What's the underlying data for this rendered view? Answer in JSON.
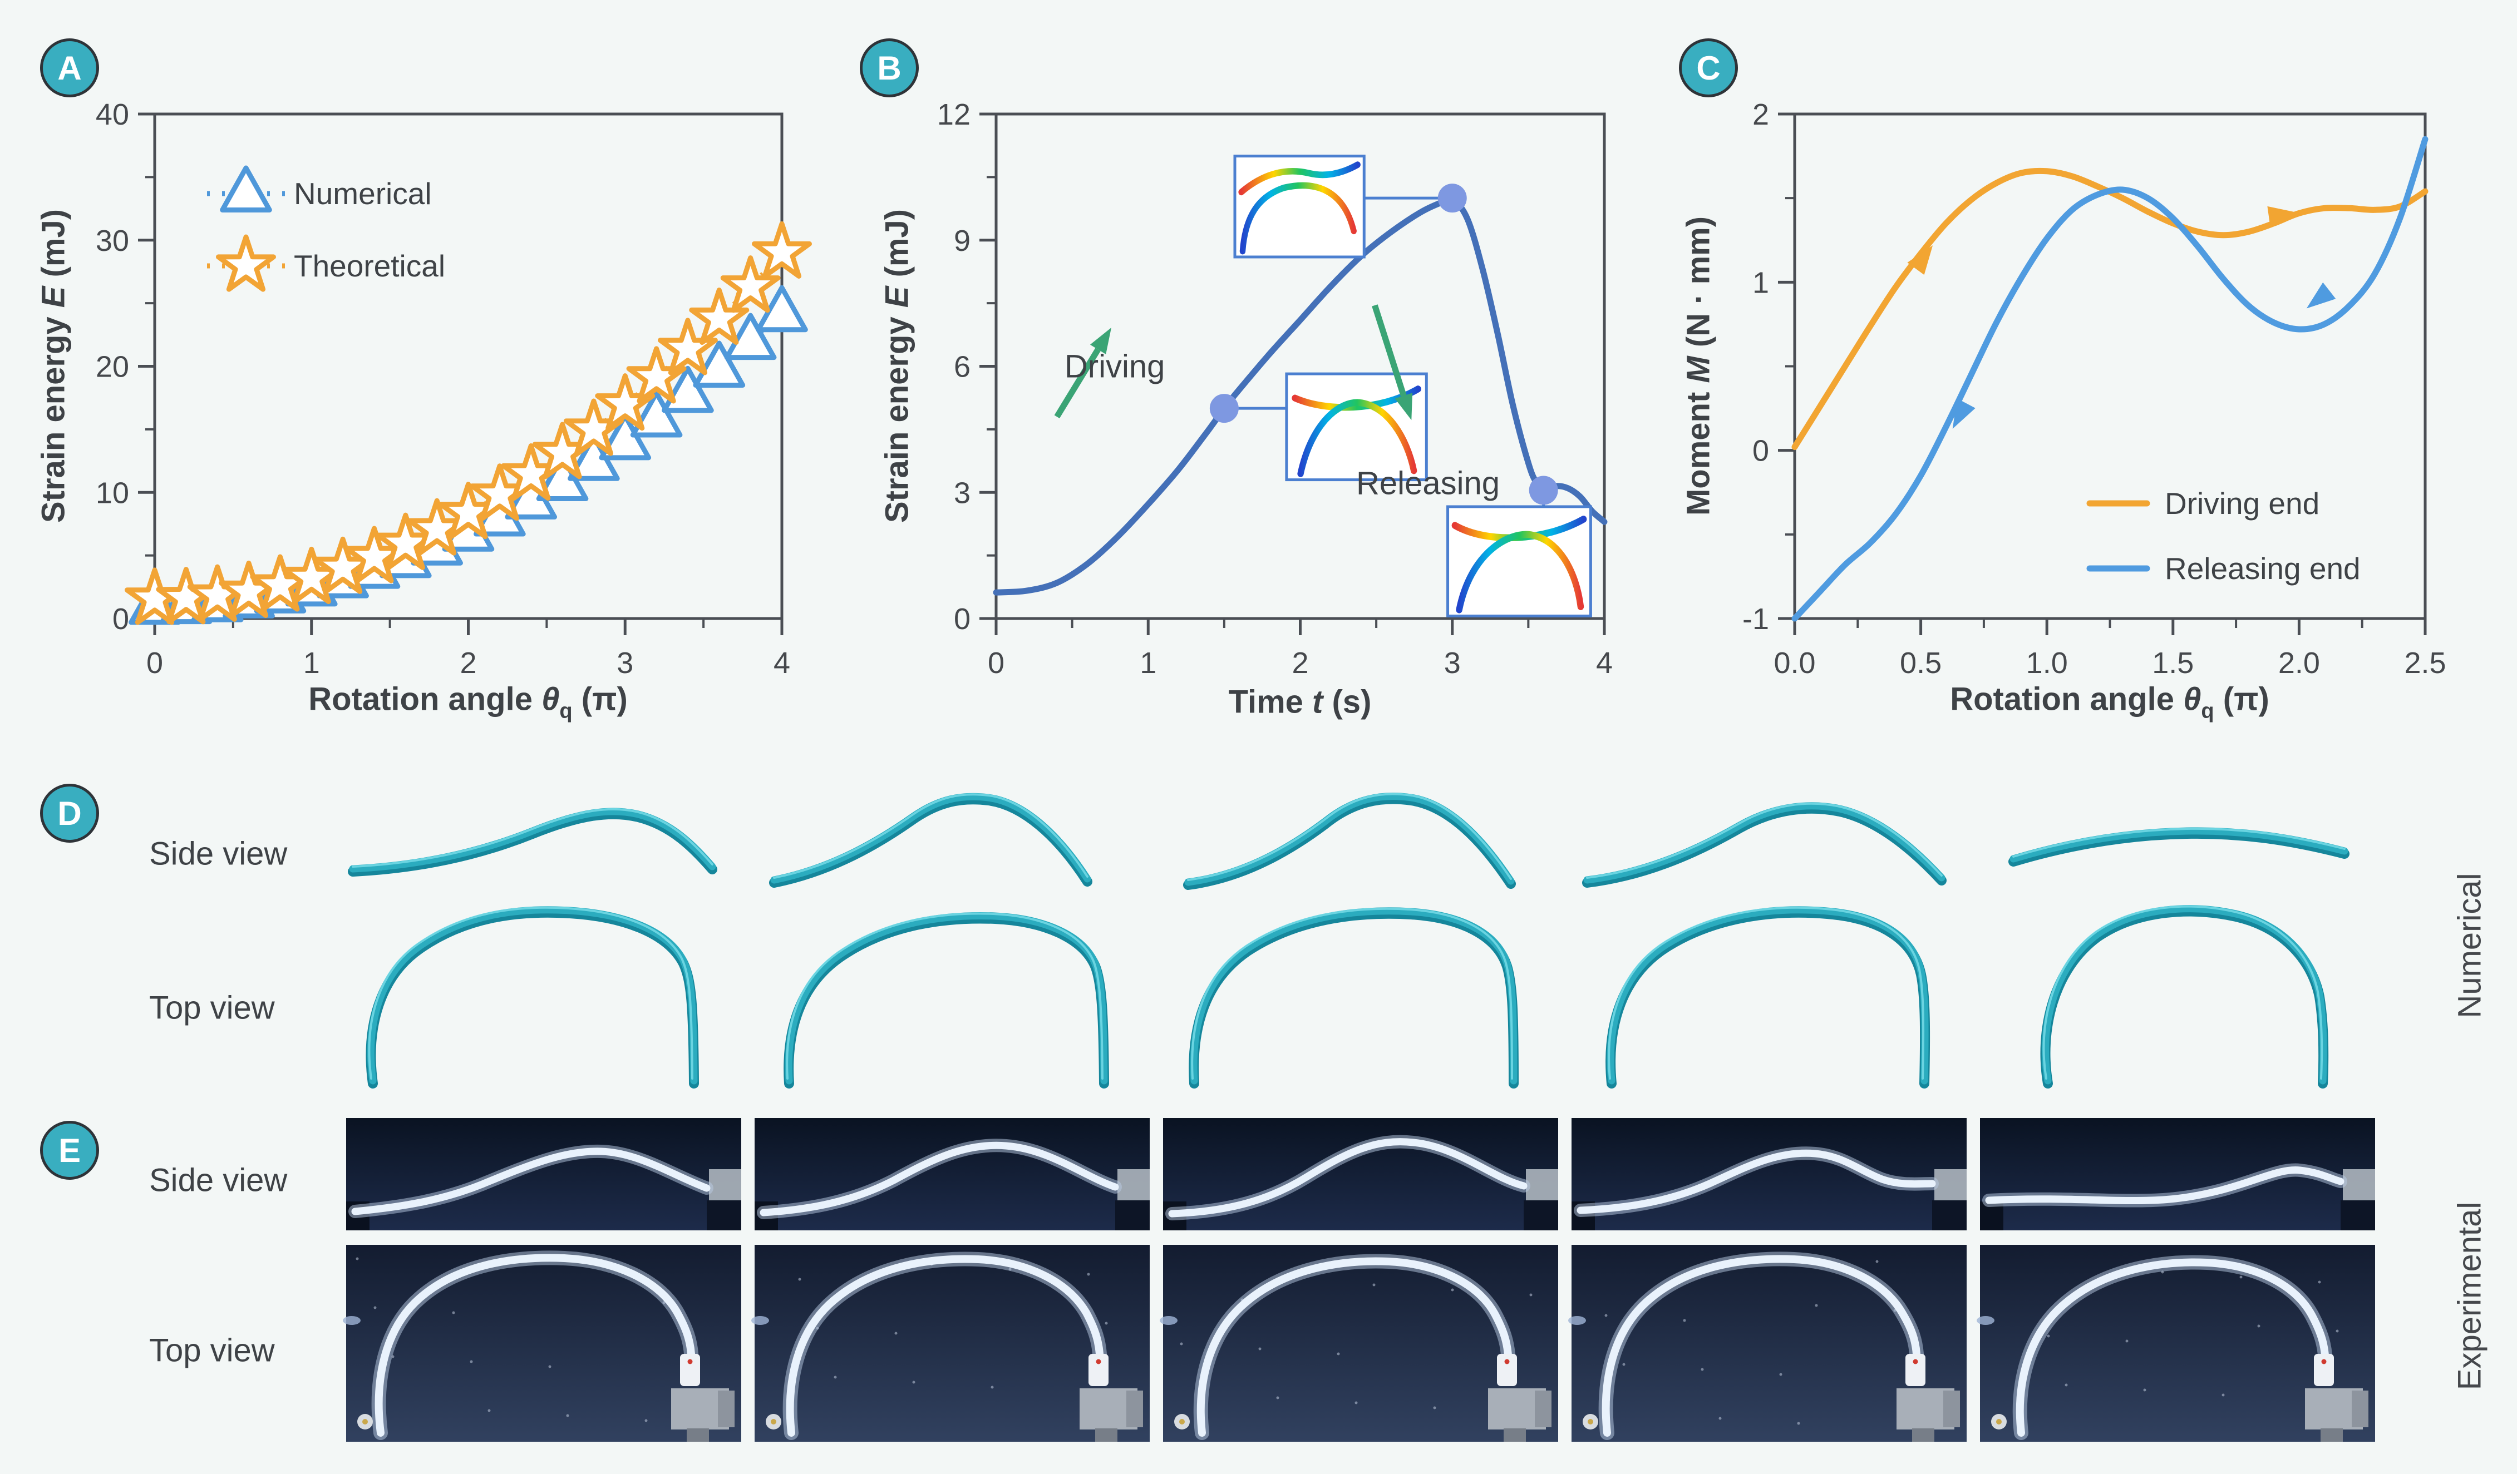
{
  "page": {
    "bg": "#f3f7f6",
    "footer_bg": "#ffffff"
  },
  "colors": {
    "axis": "#4a4e54",
    "text": "#3e4246",
    "tick_text": "#45484c",
    "badge_fill": "#39aec0",
    "badge_stroke": "#2e3338",
    "badge_letter": "#ffffff",
    "inset_border": "#4b7fd0",
    "green_arrow": "#3aa475",
    "rod_dark": "#15869b",
    "rod_main": "#2bacbf",
    "rod_light": "#7adeea",
    "photo_bg_top": "#0a1322",
    "photo_bg_bottom": "#1d2b4a",
    "photo_top_bg_top": "#131c30",
    "photo_top_bg_bottom": "#31415f",
    "photo_rod": "#e9f2fc",
    "photo_rod_glow": "#b9cbe4",
    "fixture_gray": "#b6bec6",
    "motor_gray": "#a8afb8",
    "coupler_white": "#eef1f5"
  },
  "panels": {
    "a": {
      "badge": "A"
    },
    "b": {
      "badge": "B"
    },
    "c": {
      "badge": "C"
    },
    "d": {
      "badge": "D",
      "row_labels": [
        "Side view",
        "Top view"
      ],
      "right_label": "Numerical"
    },
    "e": {
      "badge": "E",
      "row_labels": [
        "Side view",
        "Top view"
      ],
      "right_label": "Experimental"
    }
  },
  "chart_data": [
    {
      "type": "scatter",
      "xlabel_parts": {
        "pre": "Rotation angle ",
        "var": "θ",
        "sub": "q",
        "post": " (π)"
      },
      "ylabel_parts": {
        "pre": "Strain energy ",
        "var": "E",
        "post": " (mJ)"
      },
      "xlim": [
        0,
        4
      ],
      "ylim": [
        0,
        40
      ],
      "xticks": [
        0,
        1,
        2,
        3,
        4
      ],
      "xtick_labels": [
        "0",
        "1",
        "2",
        "3",
        "4"
      ],
      "yticks": [
        0,
        10,
        20,
        30,
        40
      ],
      "ytick_labels": [
        "0",
        "10",
        "20",
        "30",
        "40"
      ],
      "x_minor": 0.5,
      "y_minor": 5,
      "series": [
        {
          "name": "Numerical",
          "marker": "triangle",
          "color": "#4f98da",
          "x": [
            0,
            0.2,
            0.4,
            0.6,
            0.8,
            1.0,
            1.2,
            1.4,
            1.6,
            1.8,
            2.0,
            2.2,
            2.4,
            2.6,
            2.8,
            3.0,
            3.2,
            3.4,
            3.6,
            3.8,
            4.0
          ],
          "y": [
            1.0,
            1.05,
            1.2,
            1.5,
            1.9,
            2.45,
            3.1,
            3.85,
            4.7,
            5.7,
            6.8,
            8.0,
            9.35,
            10.8,
            12.4,
            14.05,
            15.85,
            17.8,
            19.8,
            22.0,
            24.2
          ]
        },
        {
          "name": "Theoretical",
          "marker": "star",
          "color": "#f2a435",
          "x": [
            0,
            0.2,
            0.4,
            0.6,
            0.8,
            1.0,
            1.2,
            1.4,
            1.6,
            1.8,
            2.0,
            2.2,
            2.4,
            2.6,
            2.8,
            3.0,
            3.2,
            3.4,
            3.6,
            3.8,
            4.0
          ],
          "y": [
            1.55,
            1.6,
            1.8,
            2.1,
            2.6,
            3.2,
            4.0,
            4.85,
            5.9,
            7.05,
            8.35,
            9.8,
            11.4,
            13.1,
            14.95,
            16.95,
            19.1,
            21.35,
            23.75,
            26.3,
            29.0
          ]
        }
      ]
    },
    {
      "type": "line",
      "xlabel_parts": {
        "pre": "Time ",
        "var": "t",
        "post": " (s)"
      },
      "ylabel_parts": {
        "pre": "Strain energy ",
        "var": "E",
        "post": " (mJ)"
      },
      "xlim": [
        0,
        4
      ],
      "ylim": [
        0,
        12
      ],
      "xticks": [
        0,
        1,
        2,
        3,
        4
      ],
      "xtick_labels": [
        "0",
        "1",
        "2",
        "3",
        "4"
      ],
      "yticks": [
        0,
        3,
        6,
        9,
        12
      ],
      "ytick_labels": [
        "0",
        "3",
        "6",
        "9",
        "12"
      ],
      "x_minor": 0.5,
      "y_minor": 1.5,
      "line_color": "#4470b8",
      "marker_color": "#7e98e1",
      "x": [
        0,
        0.2,
        0.4,
        0.6,
        0.8,
        1.0,
        1.2,
        1.4,
        1.5,
        1.6,
        1.8,
        2.0,
        2.2,
        2.4,
        2.6,
        2.8,
        2.95,
        3.0,
        3.1,
        3.2,
        3.3,
        3.4,
        3.5,
        3.55,
        3.6,
        3.68,
        3.76,
        3.84,
        3.92,
        4.0
      ],
      "y": [
        0.62,
        0.66,
        0.85,
        1.3,
        1.95,
        2.72,
        3.55,
        4.5,
        5.0,
        5.45,
        6.3,
        7.1,
        7.9,
        8.62,
        9.2,
        9.68,
        9.93,
        10.0,
        9.5,
        8.3,
        6.75,
        5.05,
        3.7,
        3.25,
        3.05,
        3.15,
        3.1,
        2.9,
        2.55,
        2.3
      ],
      "markers": [
        [
          1.5,
          5.0
        ],
        [
          3.0,
          10.0
        ],
        [
          3.6,
          3.05
        ]
      ],
      "annotations": [
        {
          "text": "Driving",
          "x": 0.78,
          "y": 6.0
        },
        {
          "text": "Releasing",
          "x": 2.84,
          "y": 3.22
        }
      ],
      "arrows": [
        [
          0.4,
          4.8,
          0.67,
          6.4
        ],
        [
          2.49,
          7.45,
          2.68,
          5.3
        ]
      ],
      "insets": [
        {
          "box": [
            1.57,
            8.6,
            2.42,
            11.0
          ],
          "leader": [
            [
              2.42,
              10.0
            ],
            [
              3.0,
              10.0
            ]
          ],
          "paths": [
            "M5,25 C22,12 40,8 58,12 C72,15 85,11 95,6",
            "M6,66 C8,42 18,28 38,22 C62,17 84,23 92,52"
          ]
        },
        {
          "box": [
            1.91,
            3.3,
            2.83,
            5.82
          ],
          "leader": [
            [
              1.5,
              5.0
            ],
            [
              1.91,
              5.0
            ]
          ],
          "paths": [
            "M6,16 C28,25 66,25 94,10",
            "M10,66 C18,32 38,18 52,19 C72,21 86,42 91,64"
          ]
        },
        {
          "box": [
            2.97,
            0.06,
            3.91,
            2.66
          ],
          "leader": [
            [
              3.6,
              3.05
            ],
            [
              3.6,
              2.66
            ]
          ],
          "paths": [
            "M5,12 C28,24 68,22 95,8",
            "M8,66 C16,30 42,16 58,18 C78,21 90,42 93,64"
          ]
        }
      ]
    },
    {
      "type": "multiline",
      "xlabel_parts": {
        "pre": "Rotation angle ",
        "var": "θ",
        "sub": "q",
        "post": " (π)"
      },
      "ylabel_parts": {
        "pre": "Moment ",
        "var": "M",
        "post": " (N · mm)"
      },
      "xlim": [
        0,
        2.5
      ],
      "ylim": [
        -1,
        2
      ],
      "xticks": [
        0,
        0.5,
        1,
        1.5,
        2,
        2.5
      ],
      "xtick_labels": [
        "0.0",
        "0.5",
        "1.0",
        "1.5",
        "2.0",
        "2.5"
      ],
      "yticks": [
        -1,
        0,
        1,
        2
      ],
      "ytick_labels": [
        "-1",
        "0",
        "1",
        "2"
      ],
      "x_minor": 0.25,
      "y_minor": 0.5,
      "series": [
        {
          "name": "Driving end",
          "color": "#f2a532",
          "x": [
            0,
            0.1,
            0.2,
            0.3,
            0.4,
            0.5,
            0.6,
            0.7,
            0.8,
            0.9,
            1.0,
            1.1,
            1.2,
            1.3,
            1.4,
            1.5,
            1.6,
            1.7,
            1.8,
            1.9,
            2.0,
            2.1,
            2.2,
            2.3,
            2.4,
            2.5
          ],
          "y": [
            0.02,
            0.26,
            0.5,
            0.74,
            0.97,
            1.17,
            1.35,
            1.49,
            1.59,
            1.65,
            1.66,
            1.63,
            1.57,
            1.5,
            1.42,
            1.35,
            1.3,
            1.28,
            1.3,
            1.35,
            1.41,
            1.44,
            1.44,
            1.43,
            1.45,
            1.54
          ]
        },
        {
          "name": "Releasing end",
          "color": "#4f9be0",
          "x": [
            0,
            0.1,
            0.2,
            0.3,
            0.4,
            0.5,
            0.6,
            0.7,
            0.8,
            0.9,
            1.0,
            1.1,
            1.2,
            1.3,
            1.4,
            1.5,
            1.6,
            1.7,
            1.8,
            1.9,
            2.0,
            2.1,
            2.2,
            2.3,
            2.4,
            2.5
          ],
          "y": [
            -1.0,
            -0.84,
            -0.68,
            -0.55,
            -0.38,
            -0.15,
            0.14,
            0.45,
            0.76,
            1.03,
            1.26,
            1.43,
            1.52,
            1.55,
            1.5,
            1.38,
            1.21,
            1.02,
            0.86,
            0.76,
            0.72,
            0.75,
            0.86,
            1.05,
            1.38,
            1.85
          ]
        }
      ],
      "arrows": [
        {
          "s": 0,
          "x": 0.48,
          "y": 1.08,
          "a": -54
        },
        {
          "s": 0,
          "x": 1.88,
          "y": 1.39,
          "a": -8
        },
        {
          "s": 1,
          "x": 0.68,
          "y": 0.28,
          "a": 118
        },
        {
          "s": 1,
          "x": 2.12,
          "y": 0.95,
          "a": 142
        }
      ]
    }
  ],
  "figure_d": {
    "side_paths": [
      "M12,150 C130,144 235,122 335,82 C420,48 475,40 525,52 C585,67 625,108 658,146",
      "M35,170 C125,152 205,112 282,58 C330,24 372,16 420,22 C482,30 545,86 598,168",
      "M45,174 C135,162 215,122 292,64 C342,24 392,14 446,22 C512,32 572,92 625,172",
      "M28,170 C125,158 215,122 302,72 C362,38 425,30 482,42 C552,58 615,112 665,166",
      "M60,132 C160,102 262,84 372,82 C472,80 562,94 655,118"
    ],
    "top_paths": [
      "M48,328 C34,225 62,135 132,86 C212,30 305,16 402,22 C500,28 578,58 606,112 C620,142 624,185 625,328",
      "M62,328 C56,232 82,152 152,102 C232,46 332,28 432,32 C520,36 590,66 612,117 C624,147 627,205 628,328",
      "M56,328 C50,226 76,142 152,90 C237,34 342,18 446,24 C536,30 600,62 618,117 C628,150 630,205 630,328",
      "M72,328 C62,222 92,132 172,82 C262,26 372,14 470,24 C560,34 615,72 628,132 C636,172 636,235 634,328",
      "M122,328 C106,232 132,122 212,64 C282,16 380,10 460,28 C540,46 596,102 610,172 C618,222 618,282 616,328"
    ]
  },
  "figure_e": {
    "side_rod_paths": [
      "M16,168 C100,160 172,148 242,120 C330,84 392,58 458,60 C525,62 585,102 648,126",
      "M16,170 C108,164 180,148 250,112 C320,74 380,44 452,50 C530,56 590,104 648,124",
      "M16,172 C118,168 190,148 258,106 C330,62 382,36 450,44 C530,52 592,108 648,122",
      "M16,166 C108,162 180,148 248,118 C310,90 368,58 438,64 C488,68 520,96 558,110 C592,122 625,118 648,118",
      "M16,148 C90,144 162,146 232,148 C312,150 362,148 432,130 C500,112 540,90 575,94 C612,98 632,110 648,114"
    ],
    "top_rod_paths": [
      "M62,338 C50,242 70,150 132,96 C200,36 300,20 392,24 C480,28 560,62 594,120 C612,152 618,172 620,196",
      "M66,338 C56,244 78,154 142,100 C212,40 312,22 402,26 C486,30 562,64 596,122 C612,152 618,172 620,196",
      "M70,338 C60,246 84,158 148,104 C218,44 318,26 406,30 C488,34 564,66 596,124 C612,154 618,174 620,198",
      "M64,338 C54,242 76,152 140,98 C210,38 310,22 400,26 C484,30 560,64 594,122 C612,152 618,172 620,196",
      "M74,338 C64,248 88,160 152,106 C222,46 322,28 408,32 C490,36 564,68 596,126 C612,156 618,176 620,198"
    ]
  }
}
